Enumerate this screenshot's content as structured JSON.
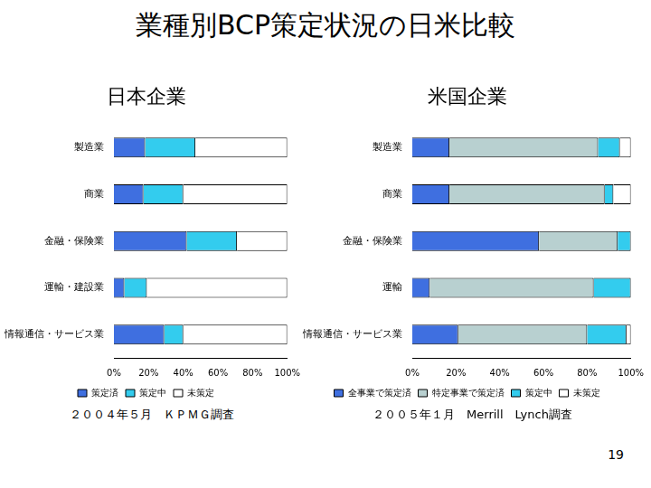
{
  "title": "業種別BCP策定状況の日米比較",
  "page_number": 19,
  "chart_data": [
    {
      "type": "bar",
      "orientation": "horizontal",
      "stacked": true,
      "grid": false,
      "legend": "bottom",
      "title": "日本企業",
      "annotation": "２００４年５月　ＫＰＭＧ調査",
      "categories": [
        "製造業",
        "商業",
        "金融・保険業",
        "運輸・建設業",
        "情報通信・サービス業"
      ],
      "series": [
        {
          "name": "策定済",
          "color": "#3f6fe0",
          "values": [
            18,
            17,
            42,
            6,
            29
          ]
        },
        {
          "name": "策定中",
          "color": "#33ccee",
          "values": [
            29,
            23,
            29,
            13,
            11
          ]
        },
        {
          "name": "未策定",
          "color": "#ffffff",
          "values": [
            53,
            60,
            29,
            81,
            60
          ]
        }
      ],
      "xlim": [
        0,
        100
      ],
      "xticks": [
        {
          "value": 0,
          "label": "0%"
        },
        {
          "value": 20,
          "label": "20%"
        },
        {
          "value": 40,
          "label": "40%"
        },
        {
          "value": 60,
          "label": "60%"
        },
        {
          "value": 80,
          "label": "80%"
        },
        {
          "value": 100,
          "label": "100%"
        }
      ]
    },
    {
      "type": "bar",
      "orientation": "horizontal",
      "stacked": true,
      "grid": false,
      "legend": "bottom",
      "title": "米国企業",
      "annotation": "２００５年１月　Merrill　Lynch調査",
      "categories": [
        "製造業",
        "商業",
        "金融・保険業",
        "運輸",
        "情報通信・サービス業"
      ],
      "series": [
        {
          "name": "全事業で策定済",
          "color": "#3f6fe0",
          "values": [
            17,
            17,
            58,
            8,
            21
          ]
        },
        {
          "name": "特定事業で策定済",
          "color": "#b8d0d0",
          "values": [
            68,
            71,
            36,
            75,
            59
          ]
        },
        {
          "name": "策定中",
          "color": "#33ccee",
          "values": [
            10,
            4,
            6,
            17,
            18
          ]
        },
        {
          "name": "未策定",
          "color": "#ffffff",
          "values": [
            5,
            8,
            0,
            0,
            2
          ]
        }
      ],
      "xlim": [
        0,
        100
      ],
      "xticks": [
        {
          "value": 0,
          "label": "0%"
        },
        {
          "value": 20,
          "label": "20%"
        },
        {
          "value": 40,
          "label": "40%"
        },
        {
          "value": 60,
          "label": "60%"
        },
        {
          "value": 80,
          "label": "80%"
        },
        {
          "value": 100,
          "label": "100%"
        }
      ]
    }
  ]
}
